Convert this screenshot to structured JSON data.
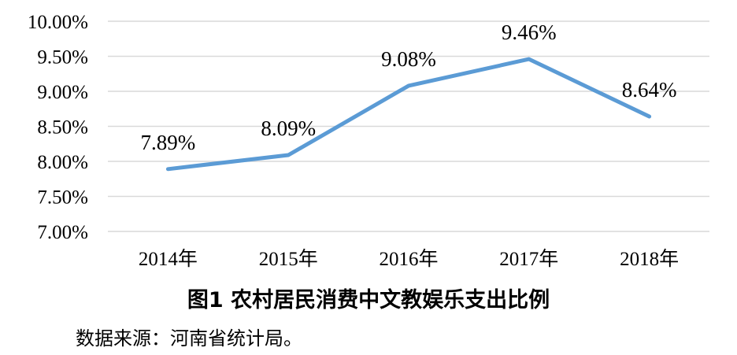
{
  "chart_data": {
    "type": "line",
    "title": "图1  农村居民消费中文教娱乐支出比例",
    "source": "数据来源：河南省统计局。",
    "categories": [
      "2014年",
      "2015年",
      "2016年",
      "2017年",
      "2018年"
    ],
    "series": [
      {
        "values": [
          7.89,
          8.09,
          9.08,
          9.46,
          8.64
        ],
        "labels": [
          "7.89%",
          "8.09%",
          "9.08%",
          "9.46%",
          "8.64%"
        ],
        "color": "#5b9bd5"
      }
    ],
    "y_ticks": [
      "7.00%",
      "7.50%",
      "8.00%",
      "8.50%",
      "9.00%",
      "9.50%",
      "10.00%"
    ],
    "ylim": [
      7.0,
      10.0
    ],
    "grid": true,
    "legend": "none"
  }
}
